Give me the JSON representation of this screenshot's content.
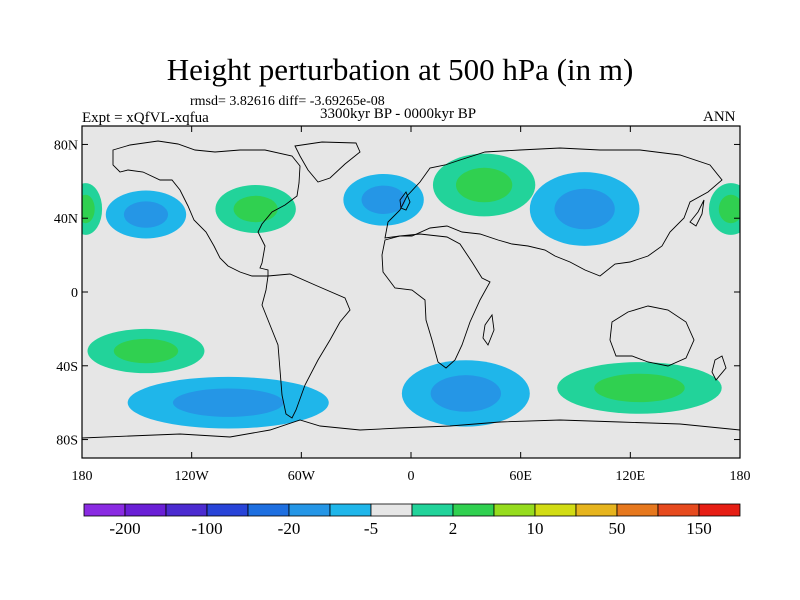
{
  "title": "Height perturbation at 500 hPa (in m)",
  "stats": "rmsd= 3.82616 diff= -3.69265e-08",
  "experiment": "Expt = xQfVL-xqfua",
  "period": "3300kyr BP - 0000kyr BP",
  "season": "ANN",
  "lat_ticks": [
    {
      "value": 80,
      "label": "80N"
    },
    {
      "value": 40,
      "label": "40N"
    },
    {
      "value": 0,
      "label": "0"
    },
    {
      "value": -40,
      "label": "40S"
    },
    {
      "value": -80,
      "label": "80S"
    }
  ],
  "lon_ticks": [
    {
      "value": -180,
      "label": "180"
    },
    {
      "value": -120,
      "label": "120W"
    },
    {
      "value": -60,
      "label": "60W"
    },
    {
      "value": 0,
      "label": "0"
    },
    {
      "value": 60,
      "label": "60E"
    },
    {
      "value": 120,
      "label": "120E"
    },
    {
      "value": 180,
      "label": "180"
    }
  ],
  "colorbar": {
    "colors": [
      "#8a2be2",
      "#6a1fd6",
      "#4b2bd0",
      "#2844d8",
      "#1e6fe0",
      "#2596e6",
      "#1fb6ea",
      "#e6e6e6",
      "#22d39a",
      "#30d050",
      "#96dc1e",
      "#d2dc14",
      "#e6b41e",
      "#e6781e",
      "#e64a1e",
      "#e61e14"
    ],
    "labels": [
      "-200",
      "-100",
      "-20",
      "-5",
      "2",
      "10",
      "50",
      "150"
    ]
  },
  "anomalies": [
    {
      "name": "north-pacific-low",
      "lon": -145,
      "lat": 42,
      "rx": 22,
      "ry": 13,
      "levels": [
        -2,
        -5
      ]
    },
    {
      "name": "north-atlantic-low",
      "lon": -15,
      "lat": 50,
      "rx": 22,
      "ry": 14,
      "levels": [
        -2,
        -5
      ]
    },
    {
      "name": "europe-high",
      "lon": 40,
      "lat": 58,
      "rx": 28,
      "ry": 17,
      "levels": [
        2,
        10
      ]
    },
    {
      "name": "north-america-high",
      "lon": -85,
      "lat": 45,
      "rx": 22,
      "ry": 13,
      "levels": [
        2,
        10
      ]
    },
    {
      "name": "west-pacific-low",
      "lon": 95,
      "lat": 45,
      "rx": 30,
      "ry": 20,
      "levels": [
        -2,
        -5
      ]
    },
    {
      "name": "dateline-high-east",
      "lon": 175,
      "lat": 45,
      "rx": 12,
      "ry": 14,
      "levels": [
        2,
        10
      ]
    },
    {
      "name": "dateline-high-west",
      "lon": -178,
      "lat": 45,
      "rx": 9,
      "ry": 14,
      "levels": [
        2,
        10
      ]
    },
    {
      "name": "south-pacific-high",
      "lon": -145,
      "lat": -32,
      "rx": 32,
      "ry": 12,
      "levels": [
        2,
        10
      ]
    },
    {
      "name": "southern-ocean-low",
      "lon": -100,
      "lat": -60,
      "rx": 55,
      "ry": 14,
      "levels": [
        -2,
        -5
      ]
    },
    {
      "name": "south-atlantic-low",
      "lon": 30,
      "lat": -55,
      "rx": 35,
      "ry": 18,
      "levels": [
        -2,
        -5
      ]
    },
    {
      "name": "indian-ocean-high",
      "lon": 125,
      "lat": -52,
      "rx": 45,
      "ry": 14,
      "levels": [
        2,
        10
      ]
    }
  ]
}
